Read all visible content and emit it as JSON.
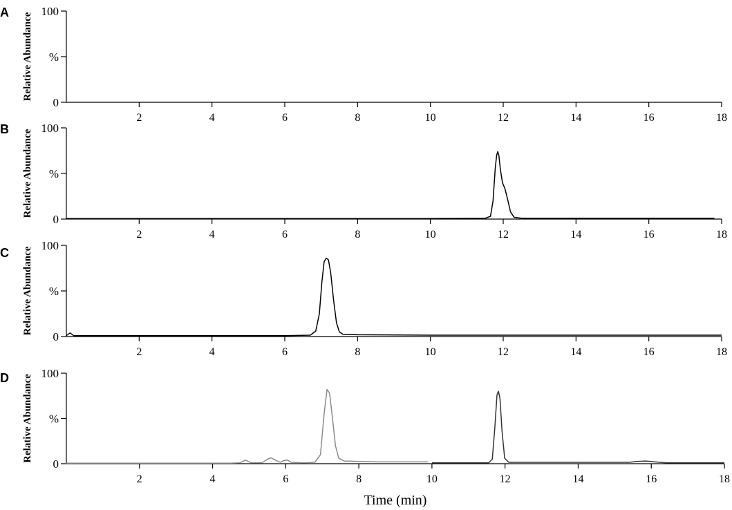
{
  "chart_data": [
    {
      "type": "line",
      "panel": "A",
      "ylabel": "Relative Abundance",
      "ytick_labels": [
        "0",
        "%",
        "100"
      ],
      "xlim": [
        0,
        18
      ],
      "ylim": [
        0,
        100
      ],
      "xticks": [
        2,
        4,
        6,
        8,
        10,
        12,
        14,
        16,
        18
      ],
      "series": [
        {
          "color": "#000000",
          "points": []
        }
      ]
    },
    {
      "type": "line",
      "panel": "B",
      "ylabel": "Relative Abundance",
      "ytick_labels": [
        "0",
        "%",
        "100"
      ],
      "xlim": [
        0,
        18
      ],
      "ylim": [
        0,
        100
      ],
      "xticks": [
        2,
        4,
        6,
        8,
        10,
        12,
        14,
        16,
        18
      ],
      "series": [
        {
          "color": "#000000",
          "points": [
            [
              0,
              0.5
            ],
            [
              10,
              0.6
            ],
            [
              11.5,
              0.8
            ],
            [
              11.65,
              3
            ],
            [
              11.72,
              20
            ],
            [
              11.78,
              55
            ],
            [
              11.82,
              70
            ],
            [
              11.85,
              74
            ],
            [
              11.88,
              70
            ],
            [
              11.92,
              55
            ],
            [
              11.98,
              40
            ],
            [
              12.05,
              33
            ],
            [
              12.12,
              22
            ],
            [
              12.2,
              8
            ],
            [
              12.3,
              2
            ],
            [
              12.5,
              1
            ],
            [
              14,
              1
            ],
            [
              17.8,
              1
            ]
          ]
        }
      ]
    },
    {
      "type": "line",
      "panel": "C",
      "ylabel": "Relative Abundance",
      "ytick_labels": [
        "0",
        "%",
        "100"
      ],
      "xlim": [
        0,
        18
      ],
      "ylim": [
        0,
        100
      ],
      "xticks": [
        2,
        4,
        6,
        8,
        10,
        12,
        14,
        16,
        18
      ],
      "series": [
        {
          "color": "#000000",
          "points": [
            [
              0,
              1
            ],
            [
              0.1,
              4
            ],
            [
              0.2,
              1
            ],
            [
              6,
              1
            ],
            [
              6.7,
              1.5
            ],
            [
              6.85,
              6
            ],
            [
              6.95,
              25
            ],
            [
              7.02,
              60
            ],
            [
              7.08,
              82
            ],
            [
              7.14,
              86
            ],
            [
              7.2,
              84
            ],
            [
              7.26,
              70
            ],
            [
              7.34,
              40
            ],
            [
              7.42,
              15
            ],
            [
              7.5,
              5
            ],
            [
              7.6,
              2.5
            ],
            [
              8,
              2
            ],
            [
              10,
              1.5
            ],
            [
              14,
              1.5
            ],
            [
              18,
              1.5
            ]
          ]
        }
      ]
    },
    {
      "type": "line",
      "panel": "D",
      "ylabel": "Relative Abundance",
      "ytick_labels": [
        "0",
        "%",
        "100"
      ],
      "xlim": [
        0,
        18
      ],
      "ylim": [
        0,
        100
      ],
      "xticks": [
        2,
        4,
        6,
        8,
        10,
        12,
        14,
        16,
        18
      ],
      "xlabel": "Time (min)",
      "series": [
        {
          "color": "#8a8a8a",
          "points": [
            [
              0,
              0.5
            ],
            [
              4.5,
              0.5
            ],
            [
              4.75,
              1
            ],
            [
              4.9,
              4
            ],
            [
              5.05,
              1
            ],
            [
              5.35,
              1
            ],
            [
              5.5,
              5
            ],
            [
              5.6,
              6.5
            ],
            [
              5.72,
              4
            ],
            [
              5.85,
              1.5
            ],
            [
              5.95,
              3.5
            ],
            [
              6.05,
              4
            ],
            [
              6.15,
              1.5
            ],
            [
              6.5,
              1
            ],
            [
              6.8,
              1.5
            ],
            [
              6.95,
              10
            ],
            [
              7.05,
              55
            ],
            [
              7.13,
              82
            ],
            [
              7.2,
              78
            ],
            [
              7.28,
              50
            ],
            [
              7.36,
              20
            ],
            [
              7.45,
              6
            ],
            [
              7.6,
              3
            ],
            [
              8,
              2.5
            ],
            [
              8.5,
              2
            ],
            [
              9.9,
              2
            ]
          ]
        },
        {
          "color": "#333333",
          "points": [
            [
              10,
              1
            ],
            [
              11.55,
              1
            ],
            [
              11.65,
              5
            ],
            [
              11.72,
              40
            ],
            [
              11.78,
              76
            ],
            [
              11.82,
              80
            ],
            [
              11.86,
              72
            ],
            [
              11.92,
              35
            ],
            [
              11.99,
              6
            ],
            [
              12.1,
              1.5
            ],
            [
              15.4,
              1.5
            ],
            [
              15.6,
              2.5
            ],
            [
              15.85,
              3
            ],
            [
              16.1,
              2
            ],
            [
              16.4,
              1
            ],
            [
              18,
              1
            ]
          ]
        }
      ]
    }
  ]
}
